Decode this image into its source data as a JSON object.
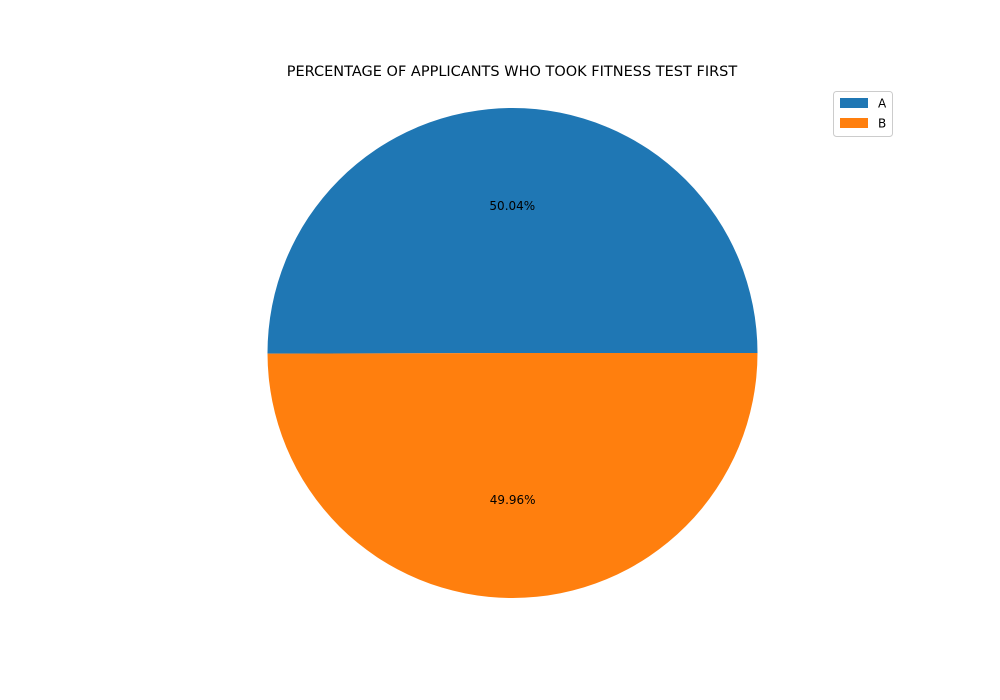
{
  "chart_data": {
    "type": "pie",
    "title": "PERCENTAGE OF APPLICANTS WHO TOOK FITNESS TEST FIRST",
    "labels": [
      "A",
      "B"
    ],
    "values": [
      50.04,
      49.96
    ],
    "display_labels": [
      "50.04%",
      "49.96%"
    ],
    "colors": [
      "#1f77b4",
      "#ff7f0e"
    ],
    "start_angle_deg": 0,
    "direction": "counterclockwise",
    "legend": {
      "placement": "top-right",
      "entries": [
        "A",
        "B"
      ]
    }
  }
}
